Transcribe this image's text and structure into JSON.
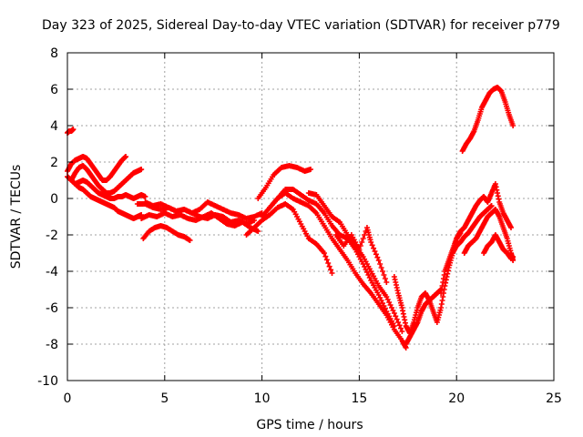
{
  "chart_data": {
    "type": "scatter",
    "title": "Day 323 of 2025, Sidereal Day-to-day VTEC variation (SDTVAR) for receiver p779",
    "xlabel": "GPS time / hours",
    "ylabel": "SDTVAR / TECUs",
    "xlim": [
      0,
      25
    ],
    "ylim": [
      -10,
      8
    ],
    "xticks": [
      0,
      5,
      10,
      15,
      20,
      25
    ],
    "yticks": [
      -10,
      -8,
      -6,
      -4,
      -2,
      0,
      2,
      4,
      6,
      8
    ],
    "grid": true,
    "marker": "plus",
    "color": "#ff0000",
    "series": [
      {
        "x": [
          0,
          0.1,
          0.2,
          0.3
        ],
        "y": [
          3.6,
          3.7,
          3.7,
          3.8
        ]
      },
      {
        "x": [
          0,
          0.2,
          0.4,
          0.6,
          0.8,
          1.0,
          1.2,
          1.4,
          1.6,
          1.8,
          2.0,
          2.2,
          2.4,
          2.6,
          2.8,
          3.0,
          3.2,
          3.4,
          3.6,
          3.8
        ],
        "y": [
          1.2,
          1.0,
          0.8,
          0.6,
          0.5,
          0.3,
          0.1,
          0.0,
          -0.1,
          -0.2,
          -0.3,
          -0.4,
          -0.5,
          -0.7,
          -0.8,
          -0.9,
          -1.0,
          -1.1,
          -1.0,
          -0.9
        ]
      },
      {
        "x": [
          0,
          0.2,
          0.4,
          0.6,
          0.8,
          1.0,
          1.2,
          1.4,
          1.6,
          1.8,
          2.0,
          2.2,
          2.4,
          2.6,
          2.8,
          3.0
        ],
        "y": [
          1.5,
          1.9,
          2.1,
          2.2,
          2.3,
          2.2,
          1.9,
          1.6,
          1.3,
          1.0,
          1.0,
          1.2,
          1.5,
          1.8,
          2.1,
          2.3
        ]
      },
      {
        "x": [
          0.2,
          0.4,
          0.6,
          0.8,
          1.0,
          1.2,
          1.4,
          1.6,
          1.8,
          2.0,
          2.2,
          2.4,
          2.6,
          2.8,
          3.0,
          3.2,
          3.4,
          3.6,
          3.8
        ],
        "y": [
          1.0,
          1.4,
          1.7,
          1.8,
          1.6,
          1.3,
          1.0,
          0.7,
          0.5,
          0.3,
          0.3,
          0.4,
          0.6,
          0.8,
          1.0,
          1.2,
          1.4,
          1.5,
          1.6
        ]
      },
      {
        "x": [
          0.4,
          0.6,
          0.8,
          1.0,
          1.2,
          1.4,
          1.6,
          1.8,
          2.0,
          2.2,
          2.4,
          2.6,
          2.8,
          3.0,
          3.2,
          3.4,
          3.6,
          3.8,
          4.0
        ],
        "y": [
          0.8,
          0.9,
          1.0,
          0.9,
          0.7,
          0.5,
          0.3,
          0.2,
          0.1,
          0.0,
          0.0,
          0.1,
          0.1,
          0.2,
          0.1,
          0.0,
          0.1,
          0.2,
          0.1
        ]
      },
      {
        "x": [
          3.9,
          4.2,
          4.5,
          4.8,
          5.1,
          5.4,
          5.7,
          6.0,
          6.3
        ],
        "y": [
          -2.2,
          -1.8,
          -1.6,
          -1.5,
          -1.6,
          -1.8,
          -2.0,
          -2.1,
          -2.3
        ]
      },
      {
        "x": [
          3.6,
          4.0,
          4.4,
          4.8,
          5.2,
          5.6,
          6.0,
          6.4,
          6.8,
          7.2,
          7.6,
          8.0,
          8.4,
          8.8,
          9.2,
          9.6
        ],
        "y": [
          -0.3,
          -0.3,
          -0.5,
          -0.6,
          -0.5,
          -0.7,
          -0.6,
          -0.8,
          -1.0,
          -1.1,
          -0.9,
          -1.0,
          -1.3,
          -1.2,
          -1.4,
          -1.2
        ]
      },
      {
        "x": [
          3.8,
          4.2,
          4.6,
          5.0,
          5.4,
          5.8,
          6.2,
          6.6,
          7.0,
          7.4,
          7.8,
          8.2,
          8.6,
          9.0,
          9.4,
          9.8
        ],
        "y": [
          -1.1,
          -0.9,
          -1.0,
          -0.8,
          -1.0,
          -0.9,
          -1.1,
          -1.2,
          -1.0,
          -0.8,
          -1.1,
          -1.4,
          -1.5,
          -1.3,
          -1.6,
          -1.8
        ]
      },
      {
        "x": [
          4.0,
          4.4,
          4.8,
          5.2,
          5.6,
          6.0,
          6.4,
          6.8,
          7.2,
          7.6,
          8.0,
          8.4,
          8.8,
          9.2,
          9.6,
          10.0
        ],
        "y": [
          -0.2,
          -0.4,
          -0.3,
          -0.5,
          -0.7,
          -0.6,
          -0.8,
          -0.6,
          -0.2,
          -0.4,
          -0.6,
          -0.8,
          -0.9,
          -1.1,
          -1.0,
          -0.8
        ]
      },
      {
        "x": [
          9.8,
          10.2,
          10.6,
          11.0,
          11.4,
          11.8,
          12.2,
          12.5
        ],
        "y": [
          0.0,
          0.6,
          1.3,
          1.7,
          1.8,
          1.7,
          1.5,
          1.6
        ]
      },
      {
        "x": [
          9.2,
          9.6,
          10.0,
          10.4,
          10.8,
          11.2,
          11.6,
          12.0,
          12.4,
          12.8,
          13.2,
          13.6
        ],
        "y": [
          -2.0,
          -1.6,
          -1.2,
          -0.9,
          -0.5,
          -0.3,
          -0.6,
          -1.4,
          -2.2,
          -2.5,
          -3.0,
          -4.1
        ]
      },
      {
        "x": [
          10.0,
          10.4,
          10.8,
          11.2,
          11.6,
          12.0,
          12.4,
          12.8,
          13.2,
          13.6,
          14.0,
          14.4,
          14.8,
          15.2,
          15.6,
          16.0,
          16.4,
          16.8,
          17.2,
          17.4
        ],
        "y": [
          -1.0,
          -0.5,
          0.0,
          0.3,
          0.0,
          -0.2,
          -0.4,
          -0.8,
          -1.5,
          -2.2,
          -2.8,
          -3.4,
          -4.1,
          -4.7,
          -5.2,
          -5.8,
          -6.4,
          -7.2,
          -7.8,
          -8.2
        ]
      },
      {
        "x": [
          10.4,
          10.8,
          11.2,
          11.6,
          12.0,
          12.4,
          12.8,
          13.2,
          13.6,
          14.0,
          14.4,
          14.8,
          15.2,
          15.6,
          16.0,
          16.4,
          16.8
        ],
        "y": [
          -0.5,
          0.0,
          0.5,
          0.5,
          0.2,
          -0.1,
          -0.3,
          -0.8,
          -1.5,
          -2.0,
          -2.2,
          -2.8,
          -3.6,
          -4.5,
          -5.3,
          -6.2,
          -7.0
        ]
      },
      {
        "x": [
          12.4,
          12.8,
          13.2,
          13.6,
          14.0,
          14.4,
          14.8,
          15.2,
          15.6,
          16.0,
          16.4,
          16.8,
          17.2
        ],
        "y": [
          0.3,
          0.2,
          -0.4,
          -1.0,
          -1.3,
          -2.0,
          -2.6,
          -3.2,
          -4.0,
          -4.8,
          -5.4,
          -6.3,
          -7.3
        ]
      },
      {
        "x": [
          13.8,
          14.2,
          14.6,
          15.0,
          15.4,
          15.6,
          16.0,
          16.4
        ],
        "y": [
          -2.0,
          -2.6,
          -2.0,
          -2.8,
          -1.6,
          -2.4,
          -3.4,
          -4.6
        ]
      },
      {
        "x": [
          16.8,
          17.0,
          17.2,
          17.4,
          17.6,
          17.8,
          18.0,
          18.2,
          18.4,
          18.6,
          18.8,
          19.0,
          19.2,
          19.4,
          19.6,
          19.8,
          20.0,
          20.2
        ],
        "y": [
          -4.3,
          -5.2,
          -6.0,
          -7.0,
          -7.4,
          -6.8,
          -6.0,
          -5.4,
          -5.2,
          -5.6,
          -6.2,
          -6.8,
          -6.0,
          -4.8,
          -3.8,
          -3.0,
          -2.2,
          -1.9
        ]
      },
      {
        "x": [
          17.4,
          17.6,
          17.8,
          18.0,
          18.2,
          18.4,
          18.6,
          18.8,
          19.0,
          19.2
        ],
        "y": [
          -8.0,
          -7.6,
          -7.2,
          -6.8,
          -6.2,
          -5.8,
          -5.6,
          -5.4,
          -5.2,
          -5.0
        ]
      },
      {
        "x": [
          19.2,
          19.4,
          19.6,
          19.8,
          20.0,
          20.2,
          20.4,
          20.6,
          20.8,
          21.0,
          21.2,
          21.4,
          21.6,
          21.8,
          22.0,
          22.2,
          22.4,
          22.6,
          22.8
        ],
        "y": [
          -5.2,
          -4.0,
          -3.4,
          -2.8,
          -2.2,
          -1.8,
          -1.6,
          -1.2,
          -0.8,
          -0.4,
          -0.1,
          0.1,
          -0.2,
          0.3,
          0.8,
          -0.2,
          -0.8,
          -1.2,
          -1.6
        ]
      },
      {
        "x": [
          19.8,
          20.0,
          20.2,
          20.4,
          20.6,
          20.8,
          21.0,
          21.2,
          21.4,
          21.6,
          21.8
        ],
        "y": [
          -3.0,
          -2.6,
          -2.4,
          -2.1,
          -1.9,
          -1.6,
          -1.3,
          -1.0,
          -0.8,
          -0.6,
          -0.4
        ]
      },
      {
        "x": [
          20.4,
          20.6,
          20.8,
          21.0,
          21.2,
          21.4,
          21.6,
          21.8,
          22.0,
          22.2,
          22.4,
          22.6,
          22.8,
          22.9
        ],
        "y": [
          -3.0,
          -2.6,
          -2.4,
          -2.2,
          -1.8,
          -1.4,
          -1.0,
          -0.8,
          -0.6,
          -1.0,
          -1.6,
          -2.2,
          -3.0,
          -3.4
        ]
      },
      {
        "x": [
          21.4,
          21.6,
          21.8,
          22.0,
          22.2,
          22.4,
          22.6,
          22.8,
          22.9
        ],
        "y": [
          -3.0,
          -2.6,
          -2.4,
          -2.0,
          -2.4,
          -2.8,
          -3.0,
          -3.3,
          -3.2
        ]
      },
      {
        "x": [
          20.3,
          20.5,
          20.7,
          20.9,
          21.1,
          21.3,
          21.5,
          21.7,
          21.9,
          22.1,
          22.3,
          22.5,
          22.7,
          22.9
        ],
        "y": [
          2.6,
          3.0,
          3.3,
          3.7,
          4.3,
          5.0,
          5.4,
          5.8,
          6.0,
          6.1,
          5.9,
          5.3,
          4.6,
          4.0
        ]
      }
    ]
  }
}
